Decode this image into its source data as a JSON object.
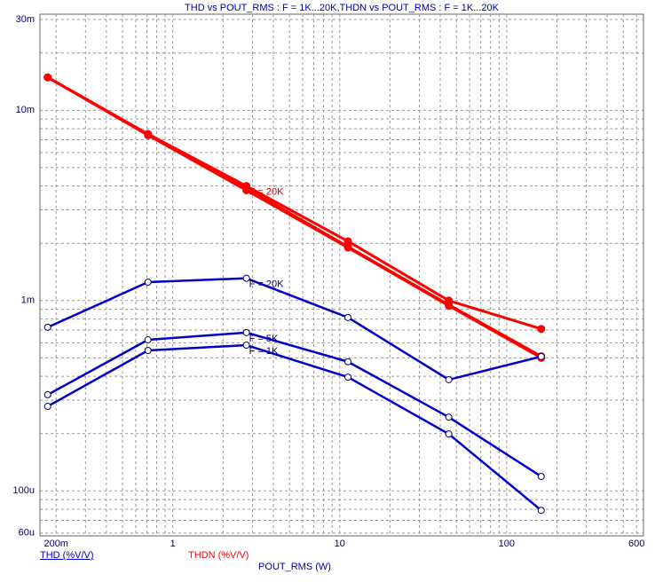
{
  "chart_data": {
    "type": "line",
    "title": "THD vs POUT_RMS : F = 1K...20K,THDN vs POUT_RMS : F = 1K...20K",
    "x_label": "POUT_RMS (W)",
    "legend": [
      {
        "label": "THD (%V/V)",
        "color": "#0000cc"
      },
      {
        "label": "THDN (%V/V)",
        "color": "#ff0000"
      }
    ],
    "x_scale": "log",
    "y_scale": "log",
    "grid": true,
    "xlim": [
      0.16,
      660
    ],
    "ylim": [
      5.8e-05,
      0.032
    ],
    "xticks": [
      {
        "value": 0.2,
        "label": "200m"
      },
      1,
      10,
      100,
      600
    ],
    "yticks": [
      {
        "value": 6e-05,
        "label": "60u"
      },
      {
        "value": 0.0001,
        "label": "100u"
      },
      {
        "value": 0.001,
        "label": "1m"
      },
      {
        "value": 0.01,
        "label": "10m"
      },
      {
        "value": 0.03,
        "label": "30m"
      }
    ],
    "xminor": [
      0.3,
      0.4,
      0.5,
      0.6,
      0.7,
      0.8,
      0.9,
      2,
      3,
      4,
      5,
      6,
      7,
      8,
      9,
      20,
      30,
      40,
      50,
      60,
      70,
      80,
      90,
      200,
      300,
      400,
      500
    ],
    "yminor": [
      7e-05,
      8e-05,
      9e-05,
      0.0002,
      0.0003,
      0.0004,
      0.0005,
      0.0006,
      0.0007,
      0.0008,
      0.0009,
      0.002,
      0.003,
      0.004,
      0.005,
      0.006,
      0.007,
      0.008,
      0.009,
      0.02
    ],
    "x": [
      0.178,
      0.71,
      2.76,
      11.2,
      45,
      161
    ],
    "series": [
      {
        "name": "F = 20K",
        "color": "#ff0000",
        "marker": "filled",
        "values": [
          0.0149,
          0.0075,
          0.004,
          0.00205,
          0.001,
          0.00071
        ]
      },
      {
        "color": "#ff0000",
        "marker": "filled",
        "values": [
          0.0149,
          0.0075,
          0.0039,
          0.00192,
          0.00095,
          0.00051
        ]
      },
      {
        "color": "#ff0000",
        "marker": "filled",
        "values": [
          0.0149,
          0.0074,
          0.0038,
          0.0019,
          0.00094,
          0.0005
        ]
      },
      {
        "name": "F = 20K",
        "color": "#0000cc",
        "marker": "open",
        "values": [
          0.000724,
          0.00125,
          0.00131,
          0.000815,
          0.000384,
          0.000508
        ]
      },
      {
        "name": "F = 5K",
        "color": "#0000cc",
        "marker": "open",
        "values": [
          0.00032,
          0.000622,
          0.000679,
          0.000477,
          0.000244,
          0.000119
        ]
      },
      {
        "name": "F = 1K",
        "color": "#0000cc",
        "marker": "open",
        "values": [
          0.000278,
          0.000547,
          0.000583,
          0.000396,
          0.000199,
          7.9e-05
        ]
      }
    ]
  }
}
